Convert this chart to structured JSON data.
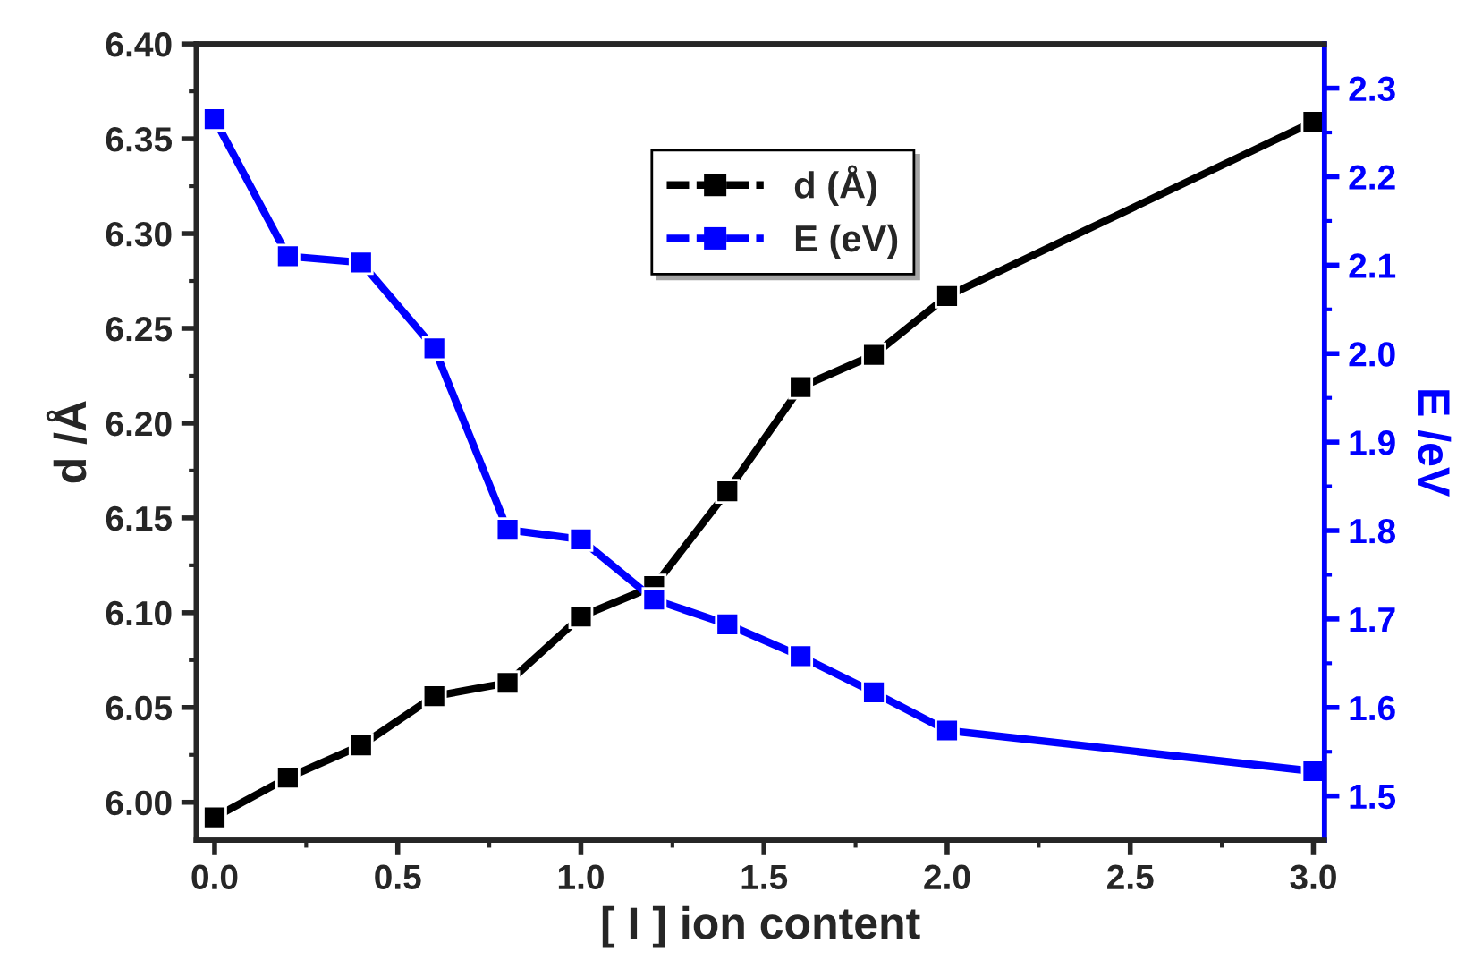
{
  "chart_data": {
    "type": "line",
    "xlabel": "[ I ] ion content",
    "ylabel": "d /Å",
    "y2label": "E /eV",
    "x": [
      0.0,
      0.2,
      0.4,
      0.6,
      0.8,
      1.0,
      1.2,
      1.4,
      1.6,
      1.8,
      2.0,
      3.0
    ],
    "series": [
      {
        "name": "d (Å)",
        "color": "#000000",
        "values": [
          5.992,
          6.013,
          6.03,
          6.056,
          6.063,
          6.098,
          6.114,
          6.164,
          6.219,
          6.236,
          6.267,
          6.359
        ]
      },
      {
        "name": "E (eV)",
        "color": "#0000ff",
        "axis": "y2",
        "values": [
          2.265,
          2.11,
          2.103,
          2.006,
          1.801,
          1.79,
          1.722,
          1.694,
          1.658,
          1.617,
          1.574,
          1.528
        ]
      }
    ],
    "xlim": [
      -0.05,
      3.03
    ],
    "xticks": [
      {
        "value": 0,
        "label": "0.0"
      },
      0.5,
      {
        "value": 1,
        "label": "1.0"
      },
      1.5,
      {
        "value": 2,
        "label": "2.0"
      },
      2.5,
      {
        "value": 3,
        "label": "3.0"
      }
    ],
    "ylim": [
      5.98,
      6.4
    ],
    "yticks": [
      {
        "value": 6.0,
        "label": "6.00"
      },
      6.05,
      {
        "value": 6.1,
        "label": "6.10"
      },
      6.15,
      {
        "value": 6.2,
        "label": "6.20"
      },
      6.25,
      {
        "value": 6.3,
        "label": "6.30"
      },
      6.35,
      {
        "value": 6.4,
        "label": "6.40"
      }
    ],
    "y2lim": [
      1.45,
      2.35
    ],
    "y2ticks": [
      1.5,
      1.6,
      1.7,
      1.8,
      1.9,
      {
        "value": 2.0,
        "label": "2.0"
      },
      2.1,
      2.2,
      2.3
    ],
    "marker": "square",
    "line_style": "solid",
    "grid": false,
    "legend": "top"
  }
}
